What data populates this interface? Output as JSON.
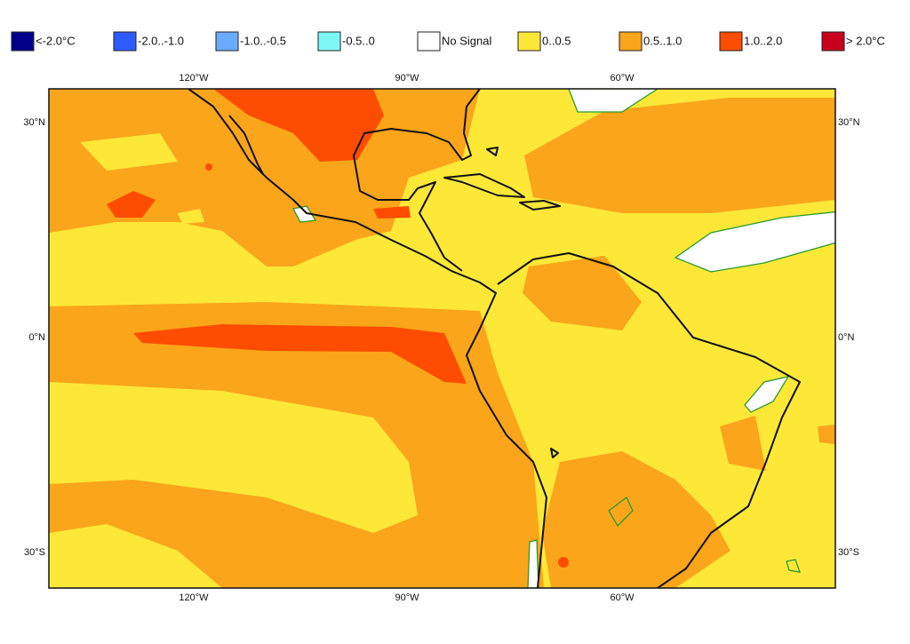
{
  "legend": [
    {
      "label": "<-2.0°C",
      "color": "#00008b"
    },
    {
      "label": "-2.0..-1.0",
      "color": "#2e5bff"
    },
    {
      "label": "-1.0..-0.5",
      "color": "#6aaaff"
    },
    {
      "label": "-0.5..0",
      "color": "#7ff7f7"
    },
    {
      "label": "No Signal",
      "color": "#ffffff"
    },
    {
      "label": "0..0.5",
      "color": "#fde838"
    },
    {
      "label": "0.5..1.0",
      "color": "#fba51a"
    },
    {
      "label": "1.0..2.0",
      "color": "#fe4c00"
    },
    {
      "label": "> 2.0°C",
      "color": "#c8001e"
    }
  ],
  "axes": {
    "top": [
      "120°W",
      "90°W",
      "60°W"
    ],
    "bottom": [
      "120°W",
      "90°W",
      "60°W"
    ],
    "left": [
      "30°N",
      "0°N",
      "30°S"
    ],
    "right": [
      "30°N",
      "0°N",
      "30°S"
    ]
  }
}
